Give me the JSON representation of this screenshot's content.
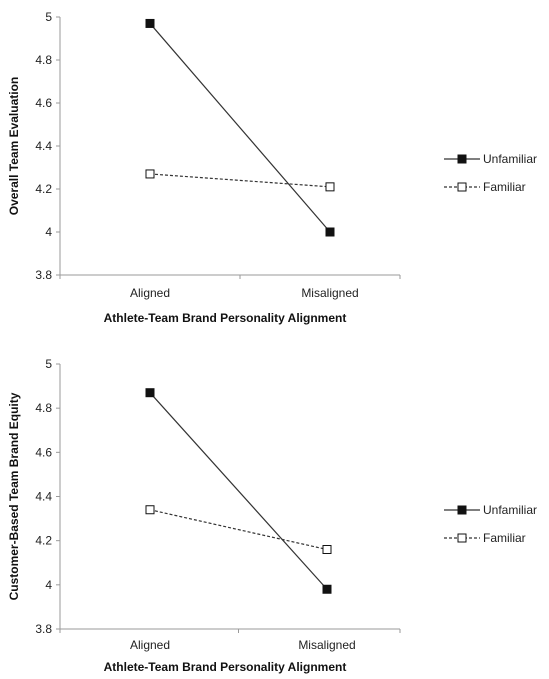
{
  "chart_data": [
    {
      "type": "line",
      "categories": [
        "Aligned",
        "Misaligned"
      ],
      "series": [
        {
          "name": "Unfamiliar",
          "values": [
            4.97,
            4.0
          ],
          "marker": "filled-square",
          "line": "solid"
        },
        {
          "name": "Familiar",
          "values": [
            4.27,
            4.21
          ],
          "marker": "open-square",
          "line": "dotted"
        }
      ],
      "xlabel": "Athlete-Team Brand Personality Alignment",
      "ylabel": "Overall Team Evaluation",
      "ylim": [
        3.8,
        5
      ],
      "yticks": [
        "3.8",
        "4",
        "4.2",
        "4.4",
        "4.6",
        "4.8",
        "5"
      ],
      "grid": false,
      "legend": "right"
    },
    {
      "type": "line",
      "categories": [
        "Aligned",
        "Misaligned"
      ],
      "series": [
        {
          "name": "Unfamiliar",
          "values": [
            4.87,
            3.98
          ],
          "marker": "filled-square",
          "line": "solid"
        },
        {
          "name": "Familiar",
          "values": [
            4.34,
            4.16
          ],
          "marker": "open-square",
          "line": "dotted"
        }
      ],
      "xlabel": "Athlete-Team Brand Personality Alignment",
      "ylabel": "Customer-Based Team Brand Equity",
      "ylim": [
        3.8,
        5
      ],
      "yticks": [
        "3.8",
        "4",
        "4.2",
        "4.4",
        "4.6",
        "4.8",
        "5"
      ],
      "grid": false,
      "legend": "right"
    }
  ],
  "colors": {
    "axis": "#9a9a9a",
    "line": "#333333",
    "marker_fill": "#111111"
  }
}
